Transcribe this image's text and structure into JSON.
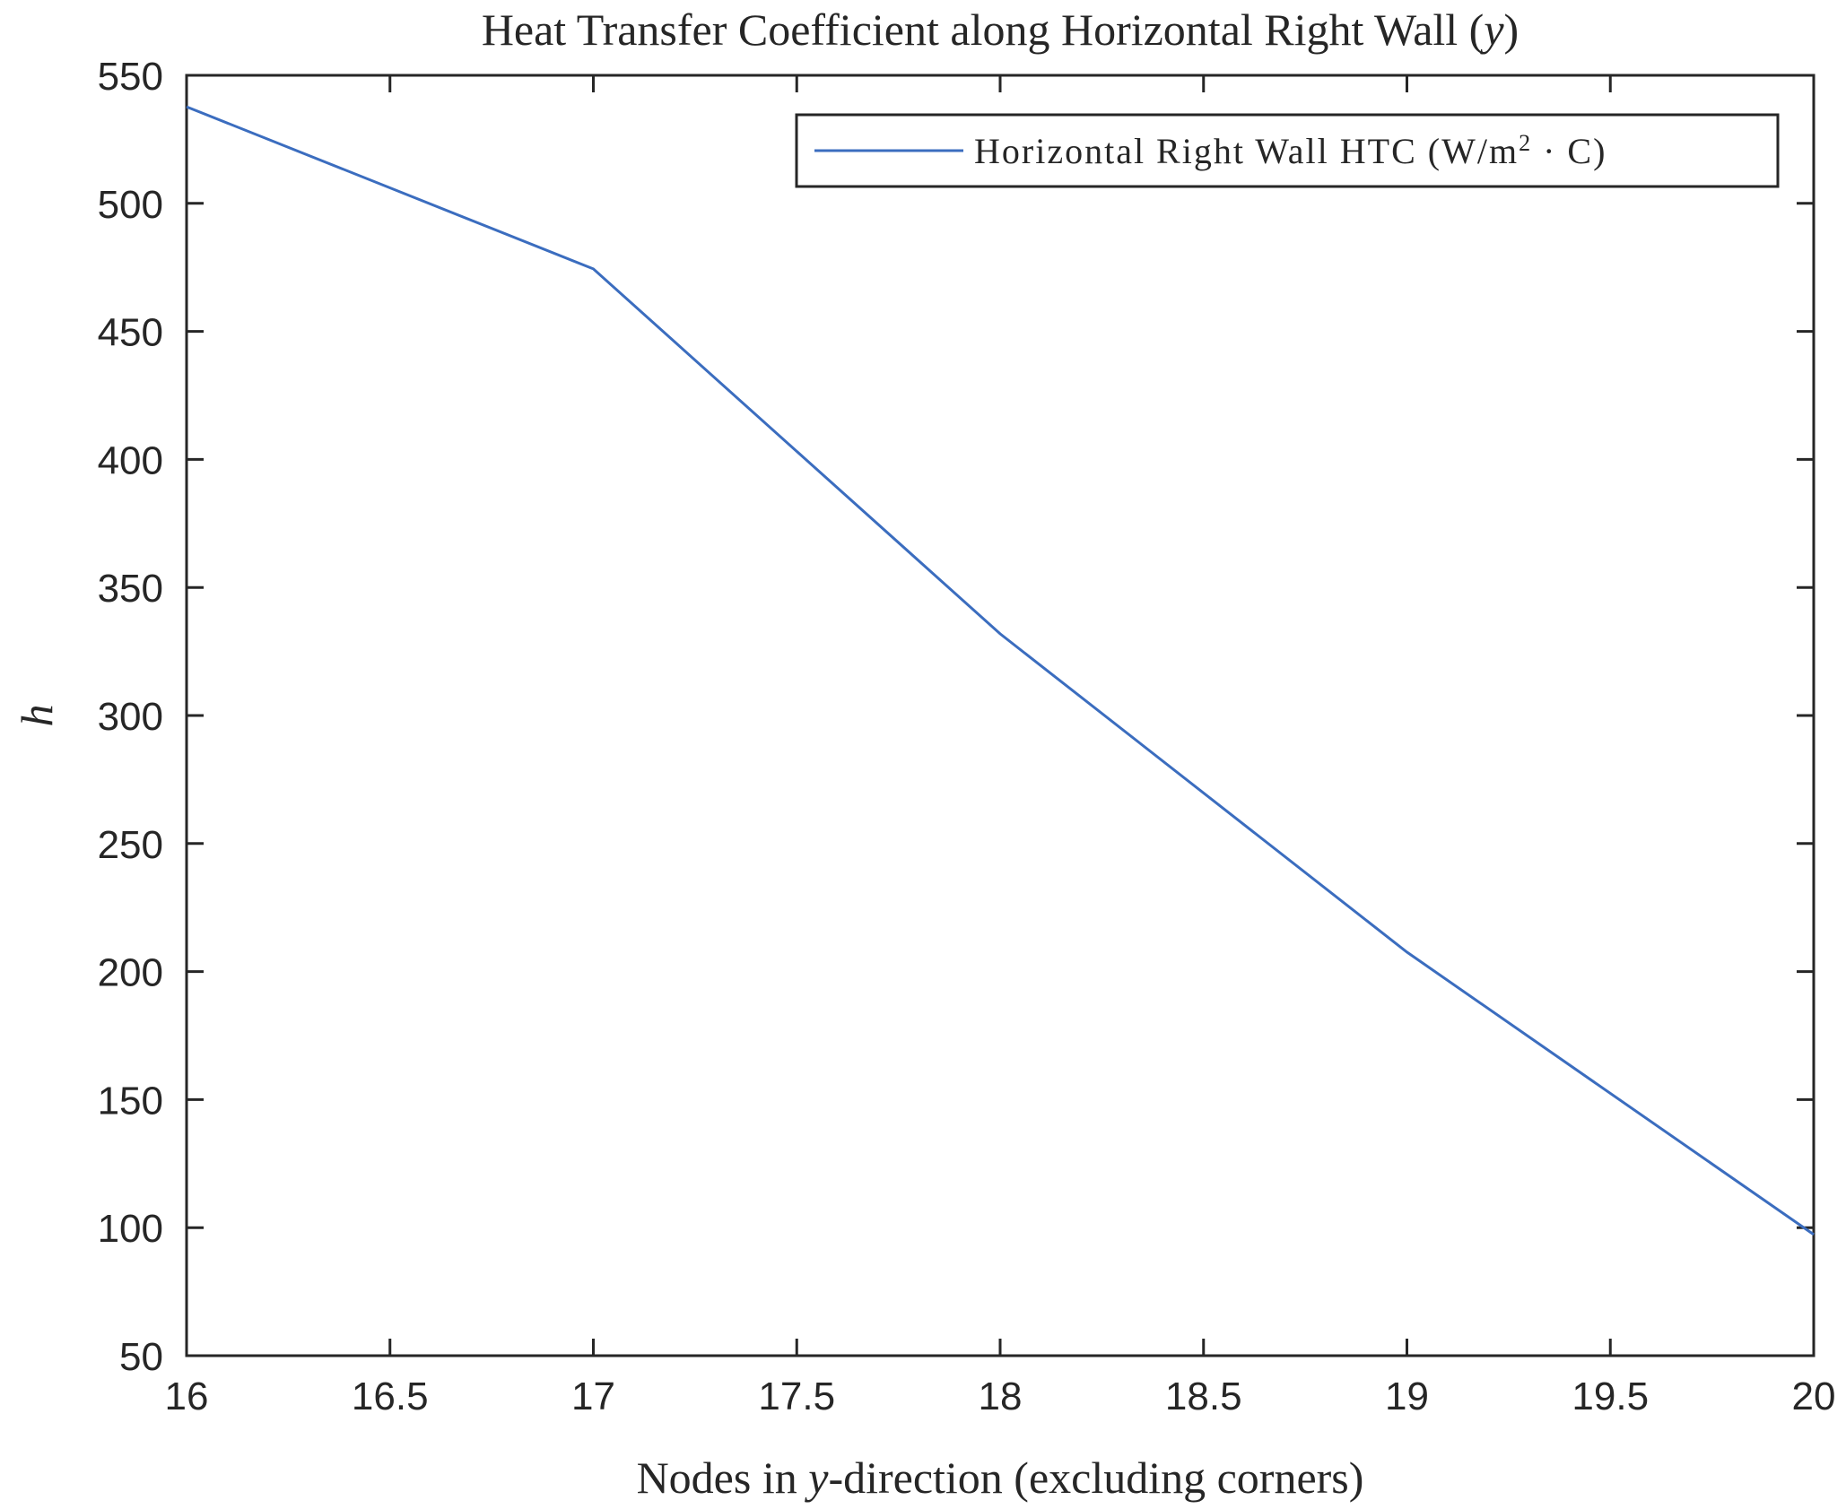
{
  "chart_data": {
    "type": "line",
    "title": "Heat Transfer Coefficient along Horizontal Right Wall (y)",
    "xlabel": "Nodes in y-direction (excluding corners)",
    "ylabel": "h",
    "xlim": [
      16,
      20
    ],
    "ylim": [
      50,
      550
    ],
    "x_ticks": [
      16,
      16.5,
      17,
      17.5,
      18,
      18.5,
      19,
      19.5,
      20
    ],
    "x_tick_labels": [
      "16",
      "16.5",
      "17",
      "17.5",
      "18",
      "18.5",
      "19",
      "19.5",
      "20"
    ],
    "y_ticks": [
      50,
      100,
      150,
      200,
      250,
      300,
      350,
      400,
      450,
      500,
      550
    ],
    "y_tick_labels": [
      "50",
      "100",
      "150",
      "200",
      "250",
      "300",
      "350",
      "400",
      "450",
      "500",
      "550"
    ],
    "grid": false,
    "legend_position": "upper right",
    "series": [
      {
        "name": "Horizontal Right Wall HTC (W/m^2 · C)",
        "color": "#3B6DBF",
        "x": [
          16,
          17,
          18,
          19,
          20
        ],
        "values": [
          537.7,
          474.4,
          331.9,
          207.6,
          97.3
        ]
      }
    ]
  },
  "labels": {
    "title_main": "Heat Transfer Coefficient along Horizontal Right Wall (",
    "title_var": "y",
    "title_end": ")",
    "xlabel_pre": "Nodes in ",
    "xlabel_var": "y",
    "xlabel_post": "-direction (excluding corners)",
    "ylabel": "h",
    "legend_main": "Horizontal Right Wall HTC (W/m",
    "legend_sup": "2",
    "legend_end": " · C)"
  }
}
